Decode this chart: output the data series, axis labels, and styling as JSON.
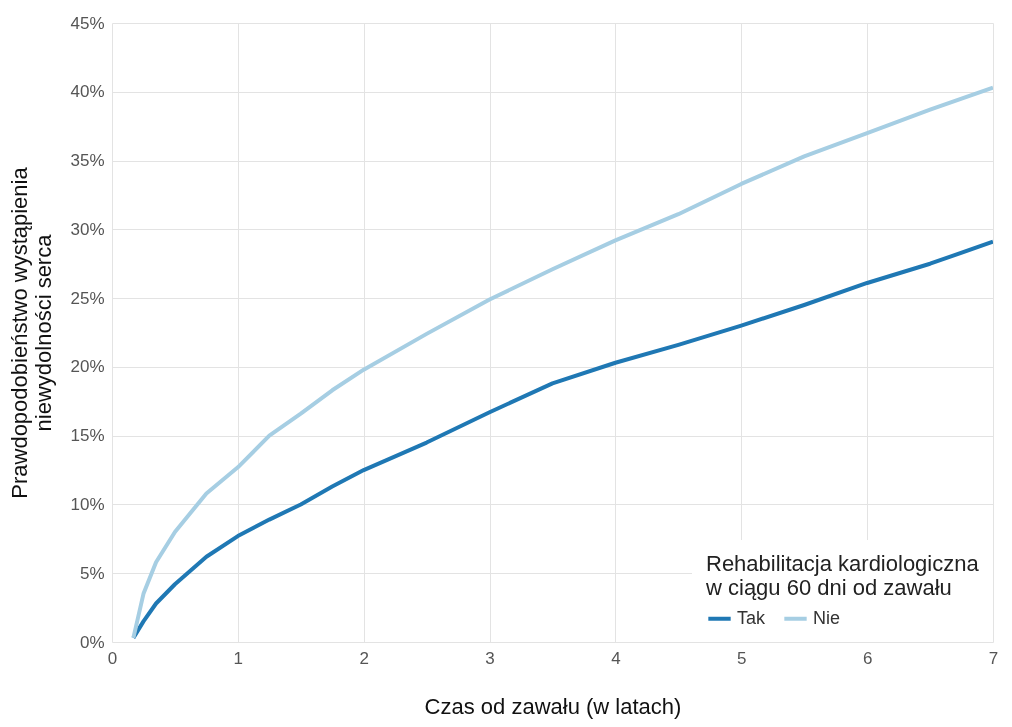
{
  "chart_data": {
    "type": "line",
    "xlabel": "Czas od zawału (w latach)",
    "ylabel": "Prawdopodobieństwo wystąpienia\nniewydolności serca",
    "legend_title": "Rehabilitacja kardiologiczna\nw ciągu 60 dni od zawału",
    "x": [
      0.17,
      0.25,
      0.35,
      0.5,
      0.75,
      1,
      1.25,
      1.5,
      1.75,
      2,
      2.5,
      3,
      3.5,
      4,
      4.5,
      5,
      5.5,
      6,
      6.5,
      7
    ],
    "series": [
      {
        "name": "Tak",
        "color": "#1f78b4",
        "values": [
          0.3,
          1.5,
          2.8,
          4.2,
          6.2,
          7.7,
          8.9,
          10.0,
          11.3,
          12.5,
          14.5,
          16.7,
          18.8,
          20.3,
          21.6,
          23.0,
          24.5,
          26.1,
          27.5,
          29.1
        ]
      },
      {
        "name": "Nie",
        "color": "#a6cee3",
        "values": [
          0.3,
          3.5,
          5.8,
          8.0,
          10.8,
          12.7,
          15.0,
          16.6,
          18.3,
          19.8,
          22.4,
          24.9,
          27.1,
          29.2,
          31.1,
          33.3,
          35.3,
          37.0,
          38.7,
          40.3
        ]
      }
    ],
    "xlim": [
      0,
      7
    ],
    "xticks": [
      0,
      1,
      2,
      3,
      4,
      5,
      6,
      7
    ],
    "ylim": [
      0,
      45
    ],
    "yticks": [
      {
        "value": 0,
        "label": "0%"
      },
      {
        "value": 5,
        "label": "5%"
      },
      {
        "value": 10,
        "label": "10%"
      },
      {
        "value": 15,
        "label": "15%"
      },
      {
        "value": 20,
        "label": "20%"
      },
      {
        "value": 25,
        "label": "25%"
      },
      {
        "value": 30,
        "label": "30%"
      },
      {
        "value": 35,
        "label": "35%"
      },
      {
        "value": 40,
        "label": "40%"
      },
      {
        "value": 45,
        "label": "45%"
      }
    ],
    "grid": true,
    "legend": "bottom right",
    "line_style": "solid",
    "marker": "none"
  }
}
